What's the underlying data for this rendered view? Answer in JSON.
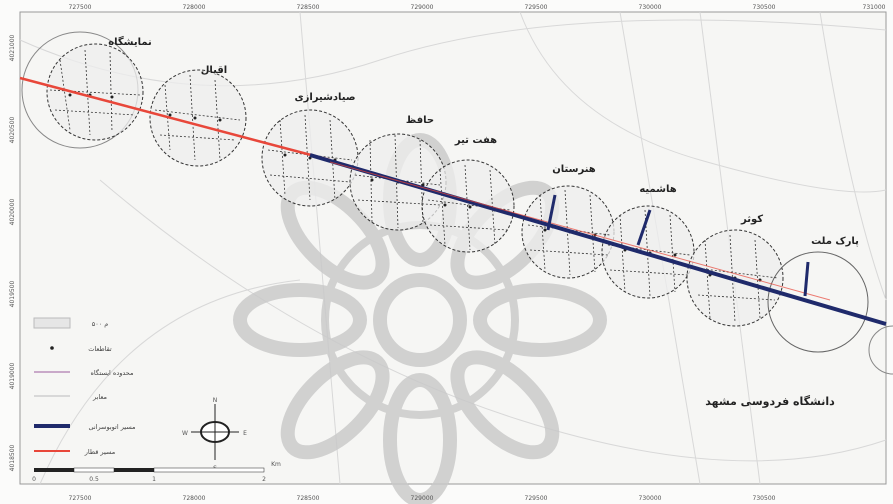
{
  "map": {
    "x_ticks": [
      "727500",
      "728000",
      "728500",
      "729000",
      "729500",
      "730000",
      "730500",
      "731000"
    ],
    "y_ticks": [
      "4021000",
      "4020500",
      "4020000",
      "4019500",
      "4019000",
      "4018500"
    ],
    "university_label": "دانشگاه فردوسی مشهد",
    "stations": [
      {
        "id": "namayeshgah",
        "label": "نمایشگاه"
      },
      {
        "id": "eqbal",
        "label": "اقبال"
      },
      {
        "id": "sayad",
        "label": "صیادشیرازی"
      },
      {
        "id": "hafez",
        "label": "حافظ"
      },
      {
        "id": "haft-tir",
        "label": "هفت تیر"
      },
      {
        "id": "honarestan",
        "label": "هنرستان"
      },
      {
        "id": "hashemieh",
        "label": "هاشمیه"
      },
      {
        "id": "kowsar",
        "label": "کوثر"
      },
      {
        "id": "park-mellat",
        "label": "پارک ملت"
      }
    ],
    "legend": [
      {
        "id": "buffer",
        "label": "۵۰۰ م",
        "color": "#e6e6e6"
      },
      {
        "id": "intersections",
        "label": "تقاطعات",
        "color": "#222222"
      },
      {
        "id": "station-area",
        "label": "محدوده ایستگاه",
        "color": "#c9a9c9"
      },
      {
        "id": "streets",
        "label": "معابر",
        "color": "#bbbbbb"
      },
      {
        "id": "brt-line",
        "label": "مسیر اتوبوسرانی",
        "color": "#1f2a6b"
      },
      {
        "id": "lrt-line",
        "label": "مسیر قطار",
        "color": "#e8473a"
      }
    ],
    "scale_bar": {
      "labels": [
        "0",
        "0.5",
        "1",
        "2"
      ],
      "unit": "Km"
    },
    "north_arrow": {
      "n": "N",
      "s": "S",
      "e": "E",
      "w": "W"
    }
  }
}
